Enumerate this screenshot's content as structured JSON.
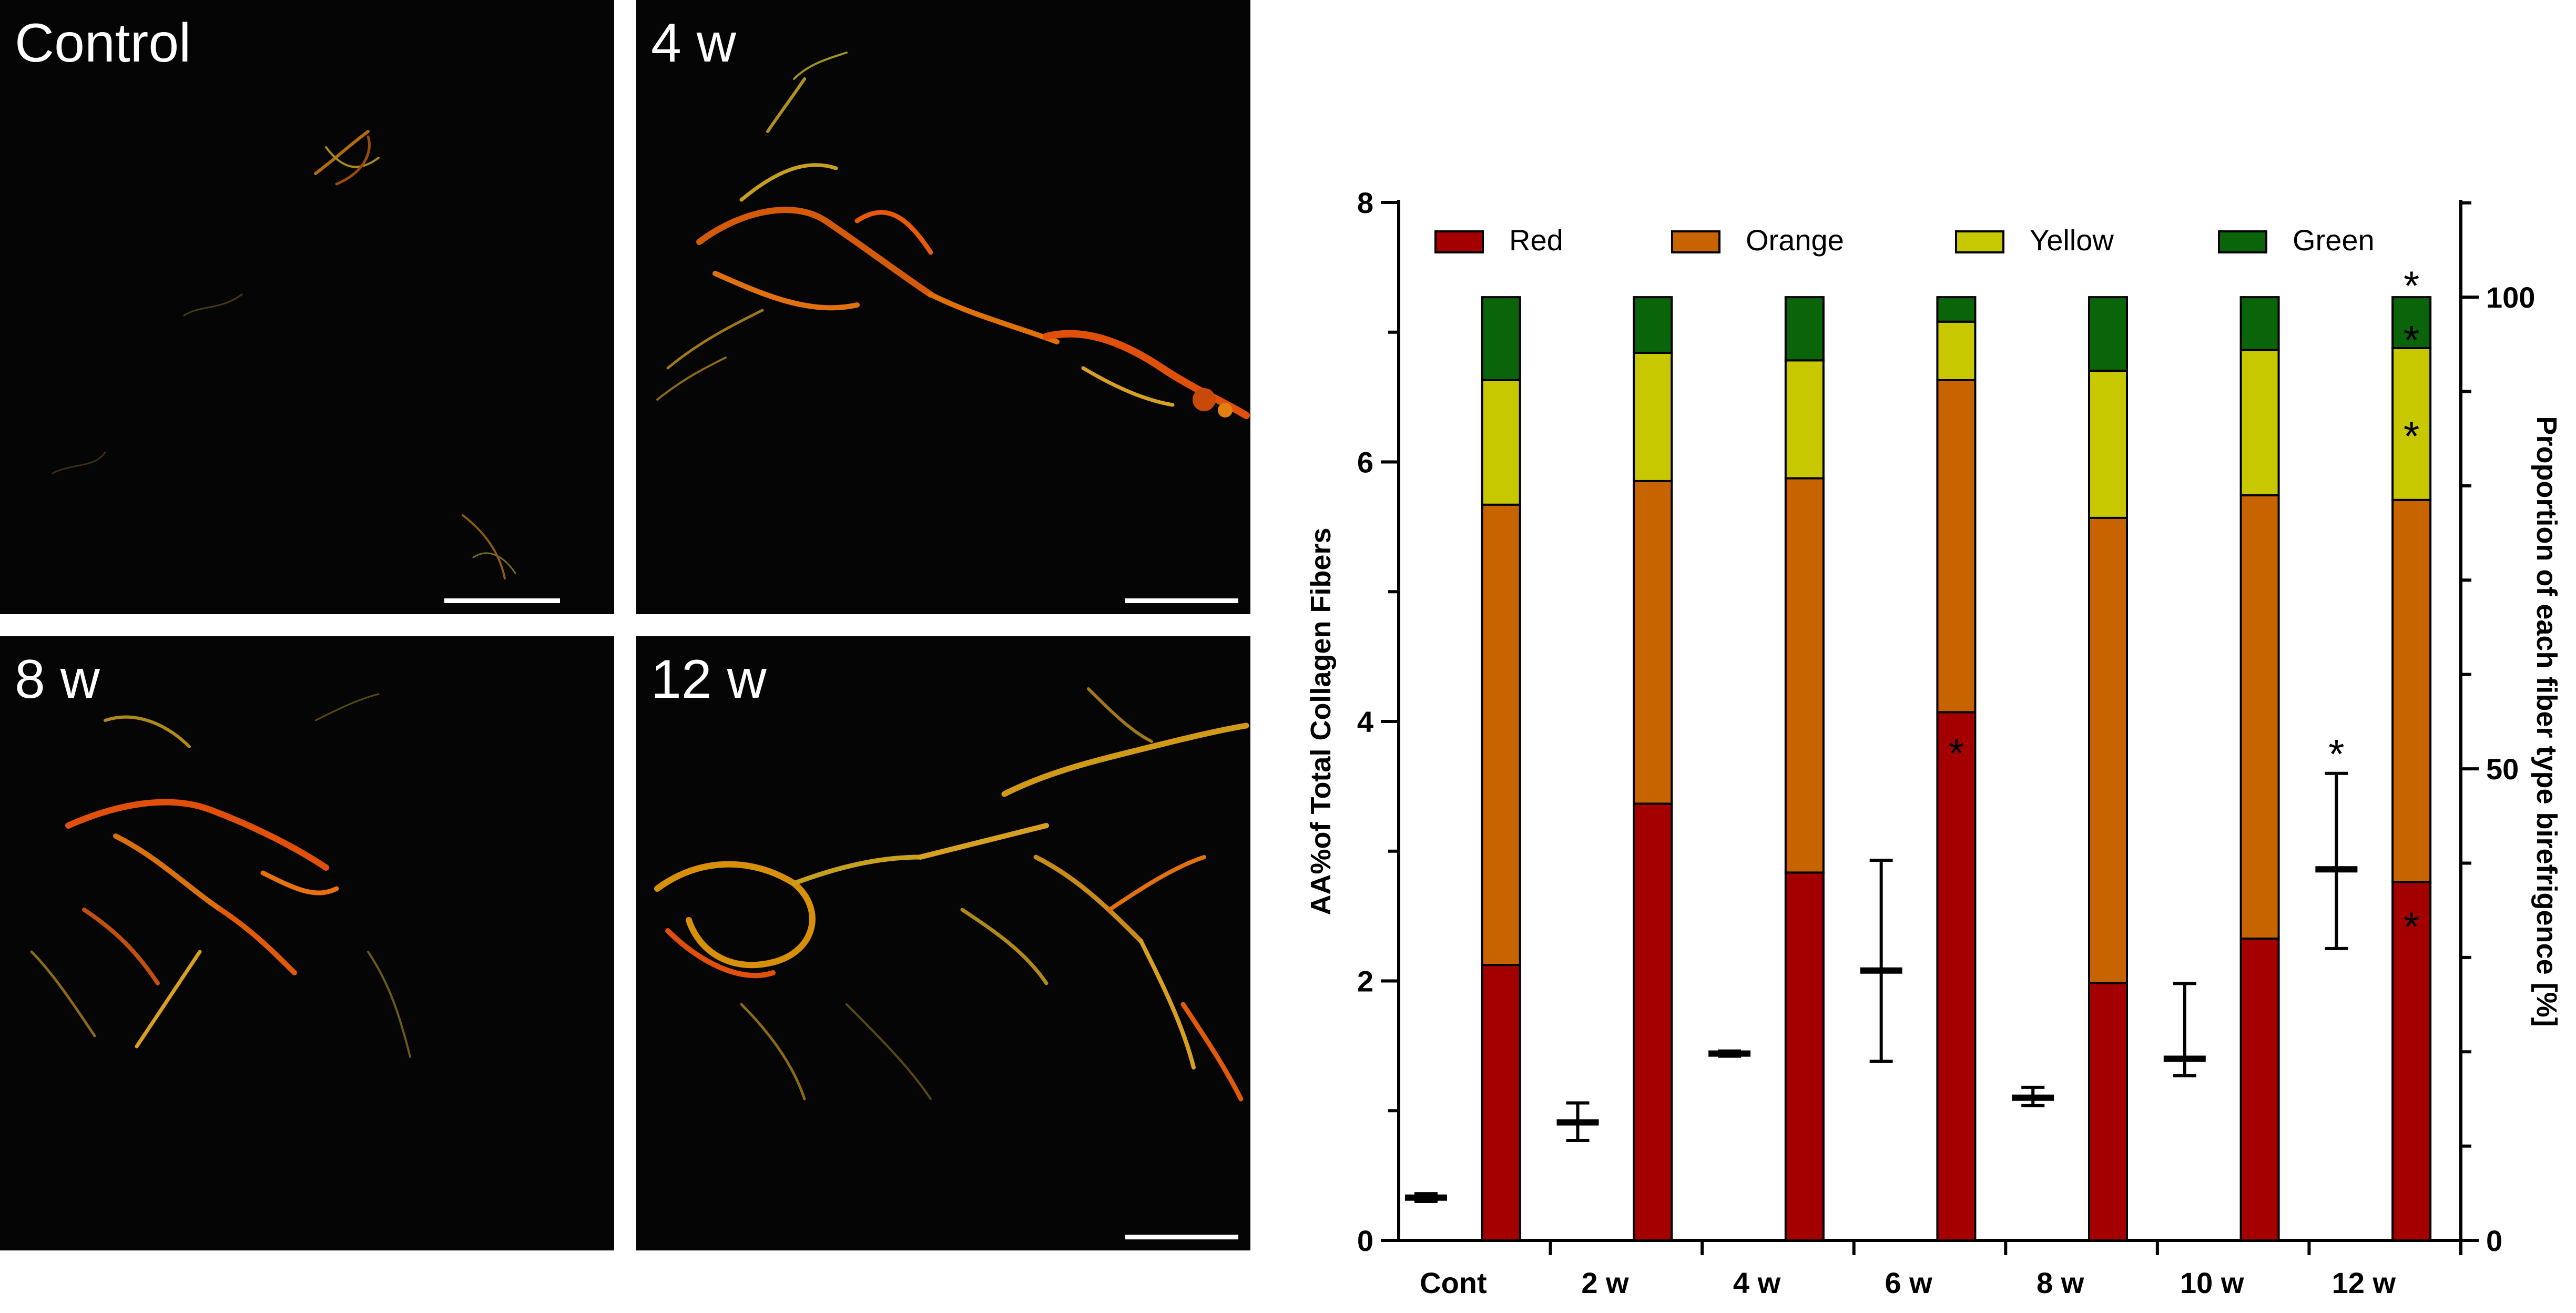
{
  "micrographs": [
    {
      "label": "Control"
    },
    {
      "label": "4 w"
    },
    {
      "label": "8 w"
    },
    {
      "label": "12 w"
    }
  ],
  "colors": {
    "Red": "#a50000",
    "Orange": "#c86400",
    "Yellow": "#c8c800",
    "Green": "#0a640a",
    "background_micrograph": "#060505"
  },
  "chart_data": {
    "type": "bar",
    "subtype": "stacked-bar with error-bar overlay, dual y-axis",
    "categories": [
      "Cont",
      "2 w",
      "4 w",
      "6 w",
      "8 w",
      "10 w",
      "12 w"
    ],
    "left_axis": {
      "label": "AA%of Total Collagen Fibers",
      "ylim": [
        0,
        8
      ],
      "ticks": [
        0,
        2,
        4,
        6,
        8
      ]
    },
    "right_axis": {
      "label": "Proportion of each fiber type birefrigence [%]",
      "ylim": [
        0,
        100
      ],
      "ticks": [
        0,
        50,
        100
      ]
    },
    "legend": {
      "placement": "top-left",
      "entries": [
        "Red",
        "Orange",
        "Yellow",
        "Green"
      ]
    },
    "grid": false,
    "total_collagen_aa": [
      {
        "category": "Cont",
        "mean": 0.33,
        "low": 0.3,
        "high": 0.36
      },
      {
        "category": "2 w",
        "mean": 0.91,
        "low": 0.77,
        "high": 1.06
      },
      {
        "category": "4 w",
        "mean": 1.44,
        "low": 1.42,
        "high": 1.46
      },
      {
        "category": "6 w",
        "mean": 2.08,
        "low": 1.38,
        "high": 2.93
      },
      {
        "category": "8 w",
        "mean": 1.1,
        "low": 1.04,
        "high": 1.18
      },
      {
        "category": "10 w",
        "mean": 1.4,
        "low": 1.27,
        "high": 1.98
      },
      {
        "category": "12 w",
        "mean": 2.86,
        "low": 2.25,
        "high": 3.6
      }
    ],
    "series": [
      {
        "name": "Red",
        "values": [
          29.2,
          46.3,
          39.0,
          56.0,
          27.3,
          32.0,
          38.0
        ]
      },
      {
        "name": "Orange",
        "values": [
          48.8,
          34.2,
          41.8,
          35.2,
          49.3,
          47.0,
          40.5
        ]
      },
      {
        "name": "Yellow",
        "values": [
          13.2,
          13.6,
          12.5,
          6.2,
          15.6,
          15.4,
          16.1
        ]
      },
      {
        "name": "Green",
        "values": [
          8.8,
          5.9,
          6.7,
          2.6,
          7.8,
          5.6,
          5.4
        ]
      }
    ],
    "significance_marks": [
      {
        "category": "6 w",
        "series": "Red",
        "mark": "*"
      },
      {
        "category": "12 w",
        "series": "Red",
        "mark": "*"
      },
      {
        "category": "12 w",
        "series": "Yellow",
        "mark": "*"
      },
      {
        "category": "12 w",
        "series": "Green",
        "mark": "*"
      },
      {
        "category": "12 w",
        "series": "Green",
        "mark": "*",
        "position": "above"
      },
      {
        "category": "12 w",
        "series": "total_collagen_aa",
        "mark": "*"
      }
    ]
  }
}
